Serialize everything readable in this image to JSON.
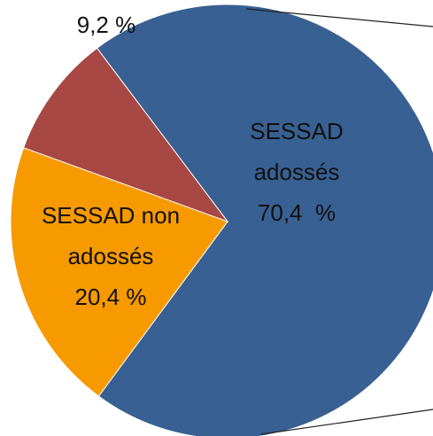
{
  "chart_data": {
    "type": "pie",
    "categories": [
      "SESSAD adossés",
      "SESSAD non adossés",
      null
    ],
    "values": [
      70.4,
      20.4,
      9.2
    ],
    "value_labels": [
      "70,4  %",
      "20,4 %",
      "9,2 %"
    ],
    "colors": [
      "#386092",
      "#f79a00",
      "#a84844"
    ]
  }
}
